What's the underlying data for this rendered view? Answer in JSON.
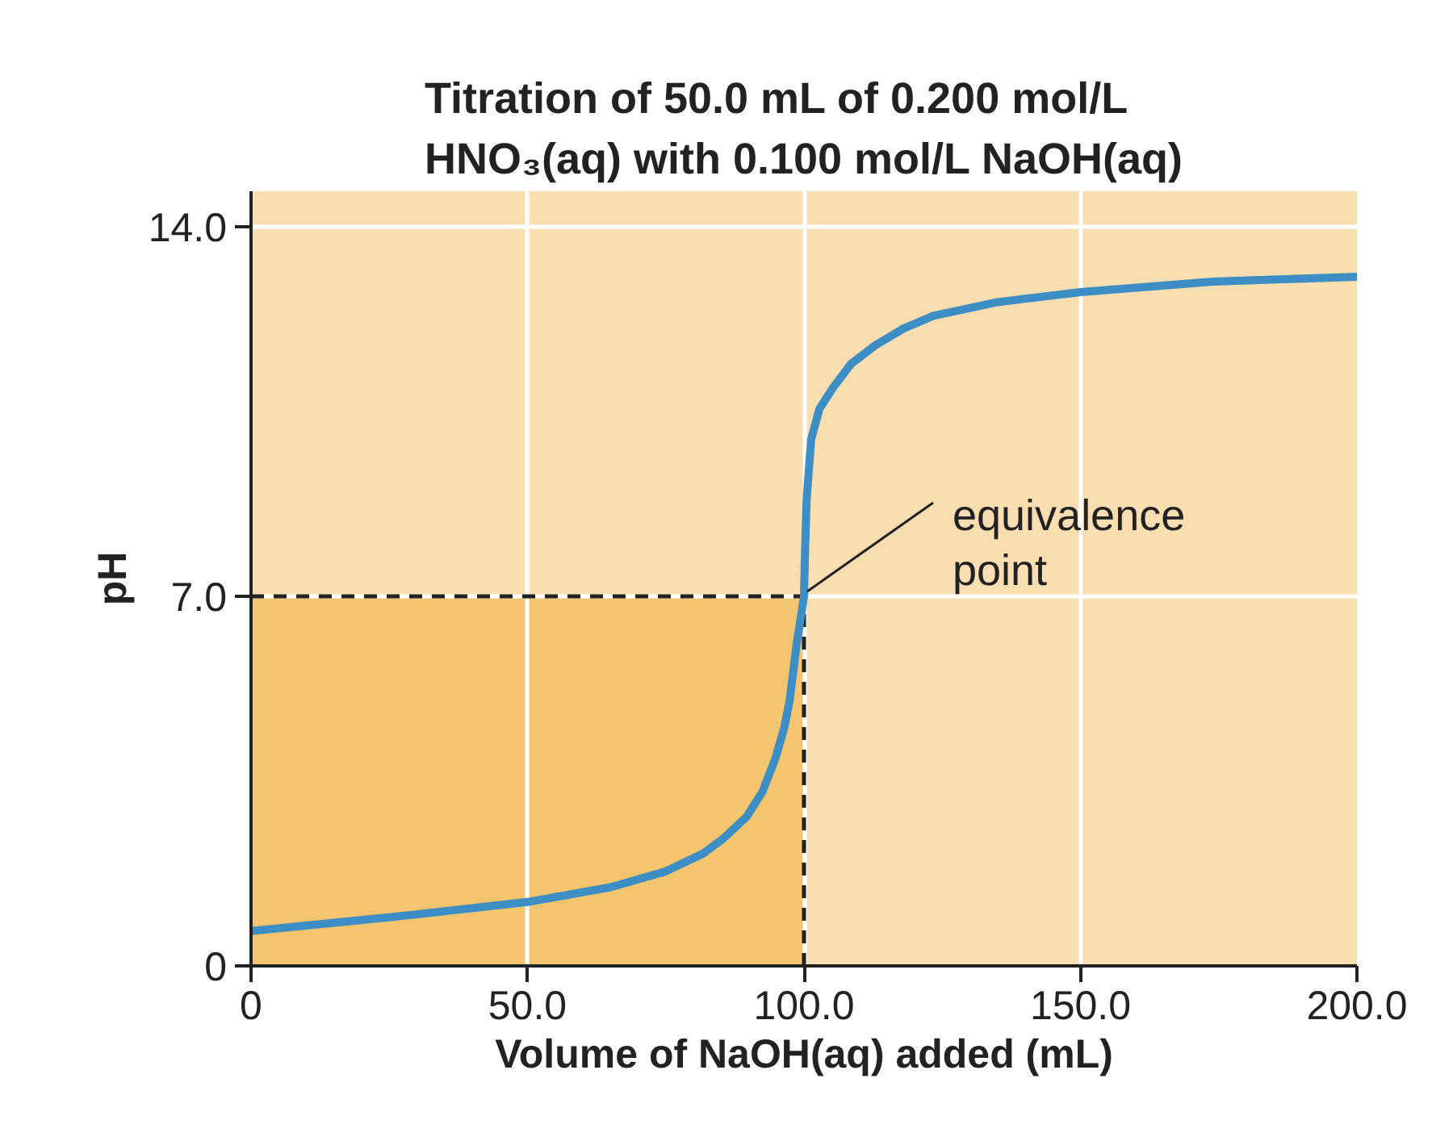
{
  "chart_data": {
    "type": "line",
    "title": "Titration of 50.0 mL of 0.200 mol/L\nHNO₃(aq) with 0.100 mol/L NaOH(aq)",
    "xlabel": "Volume of NaOH(aq) added (mL)",
    "ylabel": "pH",
    "series": [
      {
        "color": "#3d8ec4",
        "x": [
          0,
          25,
          50,
          65,
          75,
          81.8,
          85.5,
          89.6,
          92.5,
          94.8,
          96.4,
          97.4,
          98.7,
          99.5,
          100,
          100.2,
          100.5,
          101.3,
          102.8,
          105.2,
          108.5,
          113,
          118,
          123.4,
          135,
          150,
          174,
          200
        ],
        "values": [
          0.66,
          0.92,
          1.21,
          1.49,
          1.79,
          2.13,
          2.42,
          2.82,
          3.3,
          3.92,
          4.5,
          5.02,
          6.12,
          6.65,
          7.0,
          7.9,
          8.87,
          9.97,
          10.55,
          10.94,
          11.4,
          11.76,
          12.07,
          12.31,
          12.57,
          12.76,
          12.96,
          13.05
        ]
      }
    ],
    "xlim": [
      0,
      200
    ],
    "ylim": [
      0,
      14.67
    ],
    "xticks": [
      0,
      {
        "value": 50,
        "label": "50.0"
      },
      {
        "value": 100,
        "label": "100.0"
      },
      {
        "value": 150,
        "label": "150.0"
      },
      {
        "value": 200,
        "label": "200.0"
      }
    ],
    "yticks": [
      0,
      {
        "value": 7,
        "label": "7.0"
      },
      {
        "value": 14,
        "label": "14.0"
      }
    ],
    "grid": true,
    "marker": "none",
    "line_style": "solid",
    "ref_lines": [
      {
        "axis": "y",
        "value": 7,
        "line_style": "dashed",
        "color": "#222222"
      },
      {
        "axis": "x",
        "value": 100,
        "line_style": "dashed",
        "color": "#222222"
      }
    ],
    "bands": [
      {
        "axis": "x",
        "from": 0,
        "to": 100,
        "color": "#f4c46f"
      }
    ],
    "annotations": [
      {
        "text": "equivalence\npoint",
        "x": 100,
        "y": 7
      }
    ]
  }
}
